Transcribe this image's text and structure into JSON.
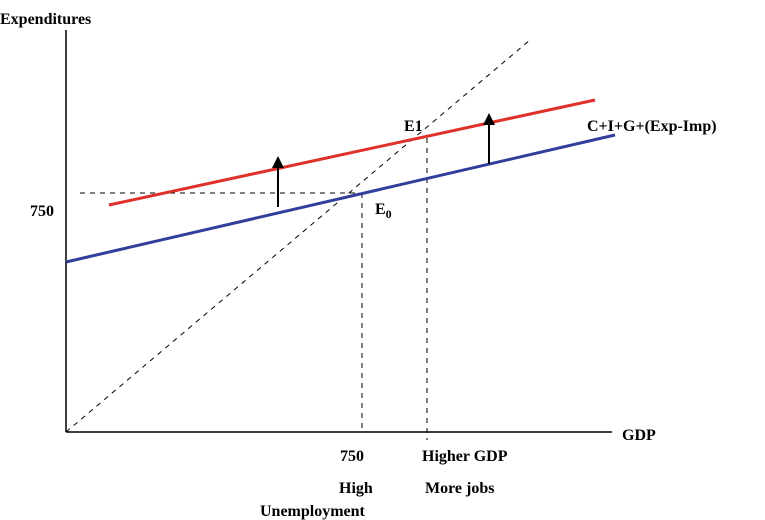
{
  "diagram": {
    "y_axis_label": "Expenditures",
    "x_axis_label": "GDP",
    "y_tick_label": "750",
    "x_tick_label": "750",
    "x_label_high_gdp": "Higher GDP",
    "under_750_line1": "High",
    "under_750_line2": "Unemployment",
    "under_high_gdp": "More jobs",
    "curve_label": "C+I+G+(Exp-Imp)",
    "e1_label": "E1",
    "e0_label": "E",
    "e0_subscript": "0",
    "colors": {
      "original_ae_line": "#2f3f9a",
      "shifted_ae_line": "#e0302a",
      "axes": "#000000",
      "guide_lines": "#000000"
    }
  }
}
